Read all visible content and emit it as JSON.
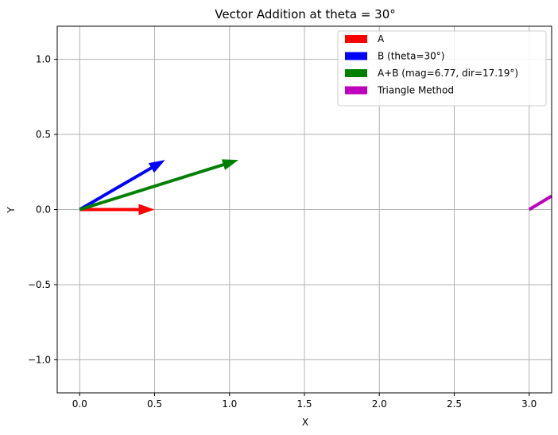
{
  "chart_data": {
    "type": "vector-quiver",
    "title": "Vector Addition at theta = 30°",
    "xlabel": "X",
    "ylabel": "Y",
    "xlim": [
      -0.15,
      3.15
    ],
    "ylim": [
      -1.22,
      1.22
    ],
    "grid": true,
    "legend_placement": "upper-right",
    "x_ticks": [
      {
        "value": 0.0,
        "label": "0.0"
      },
      {
        "value": 0.5,
        "label": "0.5"
      },
      {
        "value": 1.0,
        "label": "1.0"
      },
      {
        "value": 1.5,
        "label": "1.5"
      },
      {
        "value": 2.0,
        "label": "2.0"
      },
      {
        "value": 2.5,
        "label": "2.5"
      },
      {
        "value": 3.0,
        "label": "3.0"
      }
    ],
    "y_ticks": [
      {
        "value": -1.0,
        "label": "−1.0"
      },
      {
        "value": -0.5,
        "label": "−0.5"
      },
      {
        "value": 0.0,
        "label": "0.0"
      },
      {
        "value": 0.5,
        "label": "0.5"
      },
      {
        "value": 1.0,
        "label": "1.0"
      }
    ],
    "series": [
      {
        "name": "A",
        "color": "#ff0000",
        "x0": 0.0,
        "y0": 0.0,
        "x1": 0.5,
        "y1": 0.0,
        "kind": "arrow"
      },
      {
        "name": "B (theta=30°)",
        "color": "#0000ff",
        "x0": 0.0,
        "y0": 0.0,
        "x1": 0.57,
        "y1": 0.33,
        "kind": "arrow"
      },
      {
        "name": "A+B (mag=6.77, dir=17.19°)",
        "color": "#008000",
        "x0": 0.0,
        "y0": 0.0,
        "x1": 1.06,
        "y1": 0.33,
        "kind": "arrow"
      },
      {
        "name": "Triangle Method",
        "color": "#bf00bf",
        "x0": 3.0,
        "y0": 0.0,
        "x1": 3.15,
        "y1": 0.09,
        "kind": "segment"
      }
    ]
  }
}
